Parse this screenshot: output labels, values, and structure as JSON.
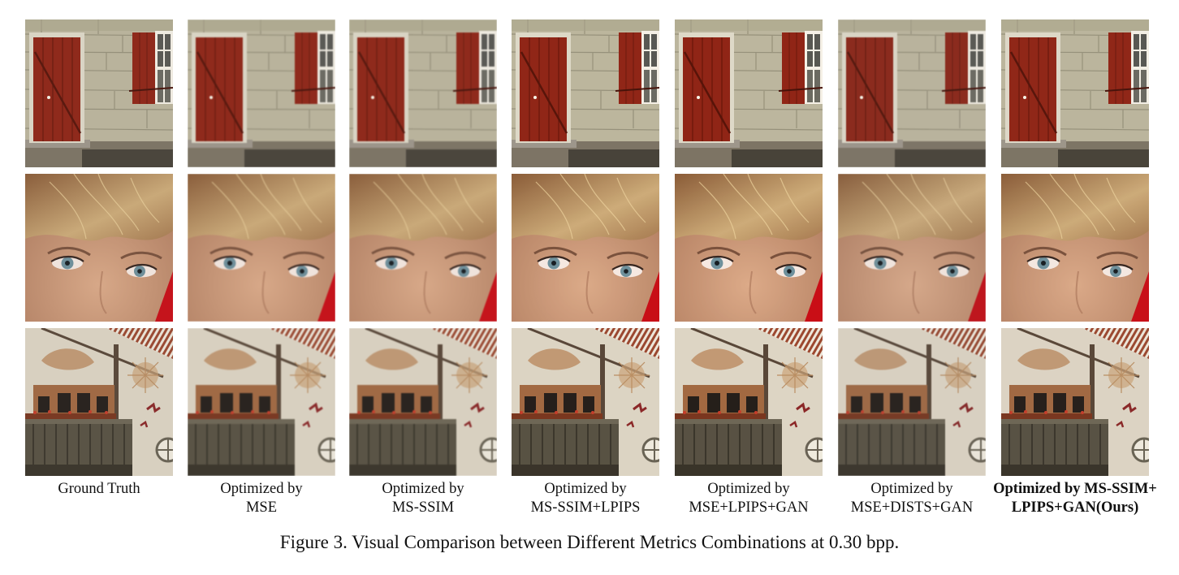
{
  "figure": {
    "caption": "Figure 3. Visual Comparison between Different Metrics Combinations at 0.30 bpp.",
    "rows": [
      {
        "content": "house-door-scene",
        "icon": "door-image"
      },
      {
        "content": "face-eyes-scene",
        "icon": "face-image"
      },
      {
        "content": "painted-facade-balcony-scene",
        "icon": "facade-image"
      }
    ],
    "columns": [
      {
        "line1": "Ground Truth",
        "line2": "",
        "emphasis": false
      },
      {
        "line1": "Optimized by",
        "line2": "MSE",
        "emphasis": false
      },
      {
        "line1": "Optimized by",
        "line2": "MS-SSIM",
        "emphasis": false
      },
      {
        "line1": "Optimized by",
        "line2": "MS-SSIM+LPIPS",
        "emphasis": false
      },
      {
        "line1": "Optimized by",
        "line2": "MSE+LPIPS+GAN",
        "emphasis": false
      },
      {
        "line1": "Optimized by",
        "line2": "MSE+DISTS+GAN",
        "emphasis": false
      },
      {
        "line1": "Optimized by MS-SSIM+",
        "line2": "LPIPS+GAN(Ours)",
        "emphasis": true
      }
    ],
    "colors": {
      "door_red": "#8f2a1c",
      "wall_stone": "#b9b39c",
      "skin": "#c99878",
      "hair": "#b08a5e",
      "eye_iris": "#6f8f9a",
      "facade_wall": "#d8d0c0",
      "balcony_wood": "#5a5446"
    }
  }
}
